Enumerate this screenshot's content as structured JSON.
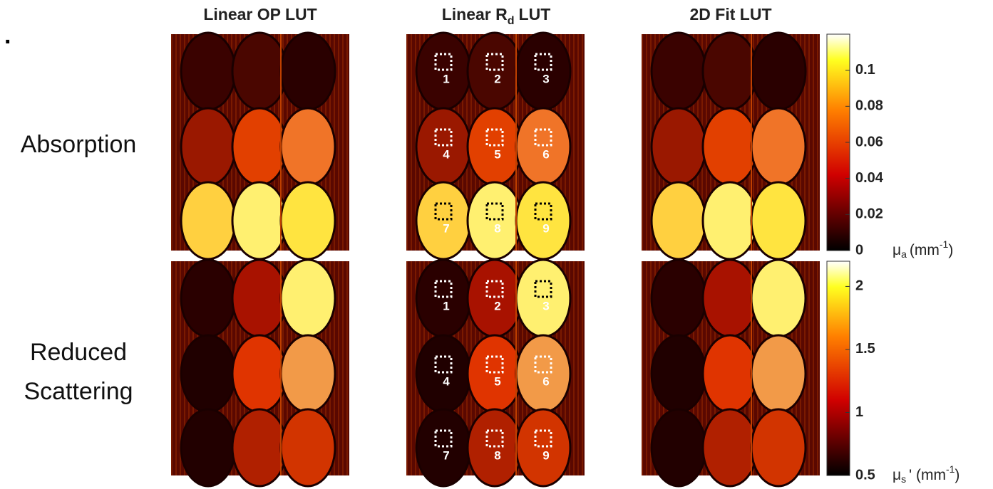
{
  "marker": ".",
  "column_titles": [
    {
      "text": "Linear OP LUT"
    },
    {
      "text": "Linear R",
      "subscript": "d",
      "suffix": "LUT"
    },
    {
      "text": "2D Fit LUT"
    }
  ],
  "row_labels": [
    [
      "Absorption"
    ],
    [
      "Reduced",
      "Scattering"
    ]
  ],
  "roi_labels": [
    "1",
    "2",
    "3",
    "4",
    "5",
    "6",
    "7",
    "8",
    "9"
  ],
  "colorbars": [
    {
      "lim": [
        0,
        0.12
      ],
      "ticks": [
        0,
        0.02,
        0.04,
        0.06,
        0.08,
        0.1
      ],
      "label": {
        "symbol": "μ",
        "subscript": "a",
        "unit": "(mm",
        "superscript": "-1",
        "close": ")"
      }
    },
    {
      "lim": [
        0.5,
        2.2
      ],
      "ticks": [
        0.5,
        1,
        1.5,
        2
      ],
      "label": {
        "symbol": "μ",
        "subscript": "s",
        "unit": "' (mm",
        "superscript": "-1",
        "close": ")"
      }
    }
  ]
}
